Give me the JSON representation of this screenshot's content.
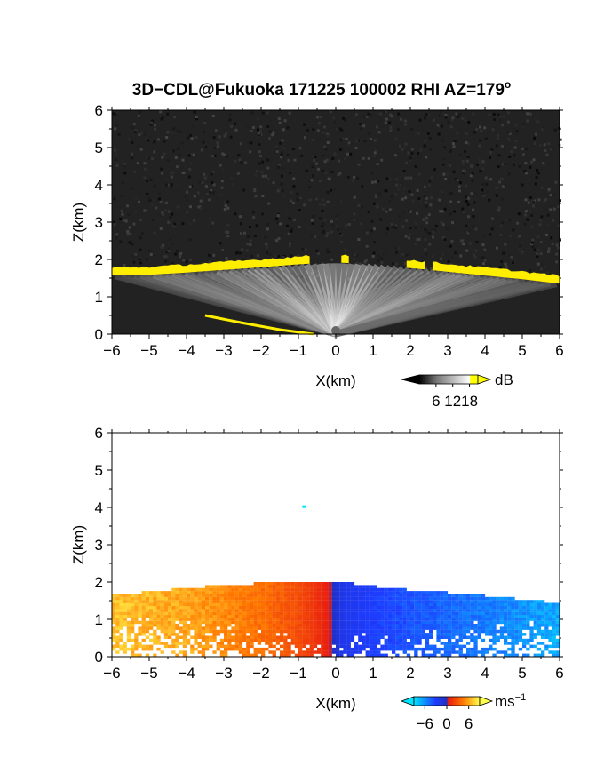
{
  "title": "3D−CDL@Fukuoka 171225 100002 RHI AZ=179",
  "title_superscript": "o",
  "chart_data": [
    {
      "type": "heatmap",
      "name": "reflectivity-panel",
      "xlabel": "X(km)",
      "ylabel": "Z(km)",
      "xlim": [
        -6,
        6
      ],
      "ylim": [
        0,
        6
      ],
      "x_ticks": [
        "−6",
        "−5",
        "−4",
        "−3",
        "−2",
        "−1",
        "0",
        "1",
        "2",
        "3",
        "4",
        "5",
        "6"
      ],
      "y_ticks": [
        "0",
        "1",
        "2",
        "3",
        "4",
        "5",
        "6"
      ],
      "colorbar": {
        "unit": "dB",
        "ticks": [
          "6",
          "12",
          "18"
        ],
        "tick_values": [
          6,
          12,
          18
        ],
        "range": [
          0,
          21
        ],
        "colors": [
          "#000000",
          "#777777",
          "#ffffff",
          "#ffff00"
        ]
      },
      "features": {
        "cloud_base_height_km": [
          [
            -6.0,
            1.6
          ],
          [
            -5.0,
            1.62
          ],
          [
            -4.0,
            1.68
          ],
          [
            -3.0,
            1.75
          ],
          [
            -2.0,
            1.82
          ],
          [
            -1.0,
            1.9
          ],
          [
            0.0,
            1.95
          ],
          [
            1.0,
            1.9
          ],
          [
            2.0,
            1.8
          ],
          [
            3.0,
            1.7
          ],
          [
            4.0,
            1.6
          ],
          [
            5.0,
            1.5
          ],
          [
            6.0,
            1.38
          ]
        ],
        "low_level_echo_km": [
          [
            -3.5,
            0.5
          ],
          [
            -2.5,
            0.3
          ],
          [
            -1.5,
            0.12
          ],
          [
            -0.6,
            0.0
          ]
        ]
      }
    },
    {
      "type": "heatmap",
      "name": "doppler-velocity-panel",
      "xlabel": "X(km)",
      "ylabel": "Z(km)",
      "xlim": [
        -6,
        6
      ],
      "ylim": [
        0,
        6
      ],
      "x_ticks": [
        "−6",
        "−5",
        "−4",
        "−3",
        "−2",
        "−1",
        "0",
        "1",
        "2",
        "3",
        "4",
        "5",
        "6"
      ],
      "y_ticks": [
        "0",
        "1",
        "2",
        "3",
        "4",
        "5",
        "6"
      ],
      "colorbar": {
        "unit": "ms",
        "unit_superscript": "−1",
        "ticks": [
          "−6",
          "0",
          "6"
        ],
        "tick_values": [
          -6,
          0,
          6
        ],
        "range": [
          -9,
          9
        ],
        "colors": [
          "#00e5ff",
          "#1e3cff",
          "#e81a10",
          "#ff7a00",
          "#ffff4d"
        ]
      },
      "features": {
        "echo_top_height_km": [
          [
            -6.0,
            1.6
          ],
          [
            -5.0,
            1.7
          ],
          [
            -4.0,
            1.8
          ],
          [
            -3.0,
            1.88
          ],
          [
            -2.0,
            1.93
          ],
          [
            -1.0,
            1.95
          ],
          [
            0.0,
            2.0
          ],
          [
            1.0,
            1.85
          ],
          [
            2.0,
            1.75
          ],
          [
            3.0,
            1.68
          ],
          [
            4.0,
            1.6
          ],
          [
            5.0,
            1.5
          ],
          [
            6.0,
            1.4
          ]
        ],
        "velocity_ms": [
          [
            -6.0,
            7
          ],
          [
            -4.0,
            6
          ],
          [
            -2.0,
            4
          ],
          [
            -1.0,
            2.5
          ],
          [
            -0.2,
            0.5
          ],
          [
            0.2,
            -2
          ],
          [
            1.0,
            -3
          ],
          [
            3.0,
            -4.5
          ],
          [
            5.0,
            -6
          ],
          [
            6.0,
            -7
          ]
        ],
        "isolated_echo_km": [
          -0.85,
          4.02
        ]
      }
    }
  ]
}
